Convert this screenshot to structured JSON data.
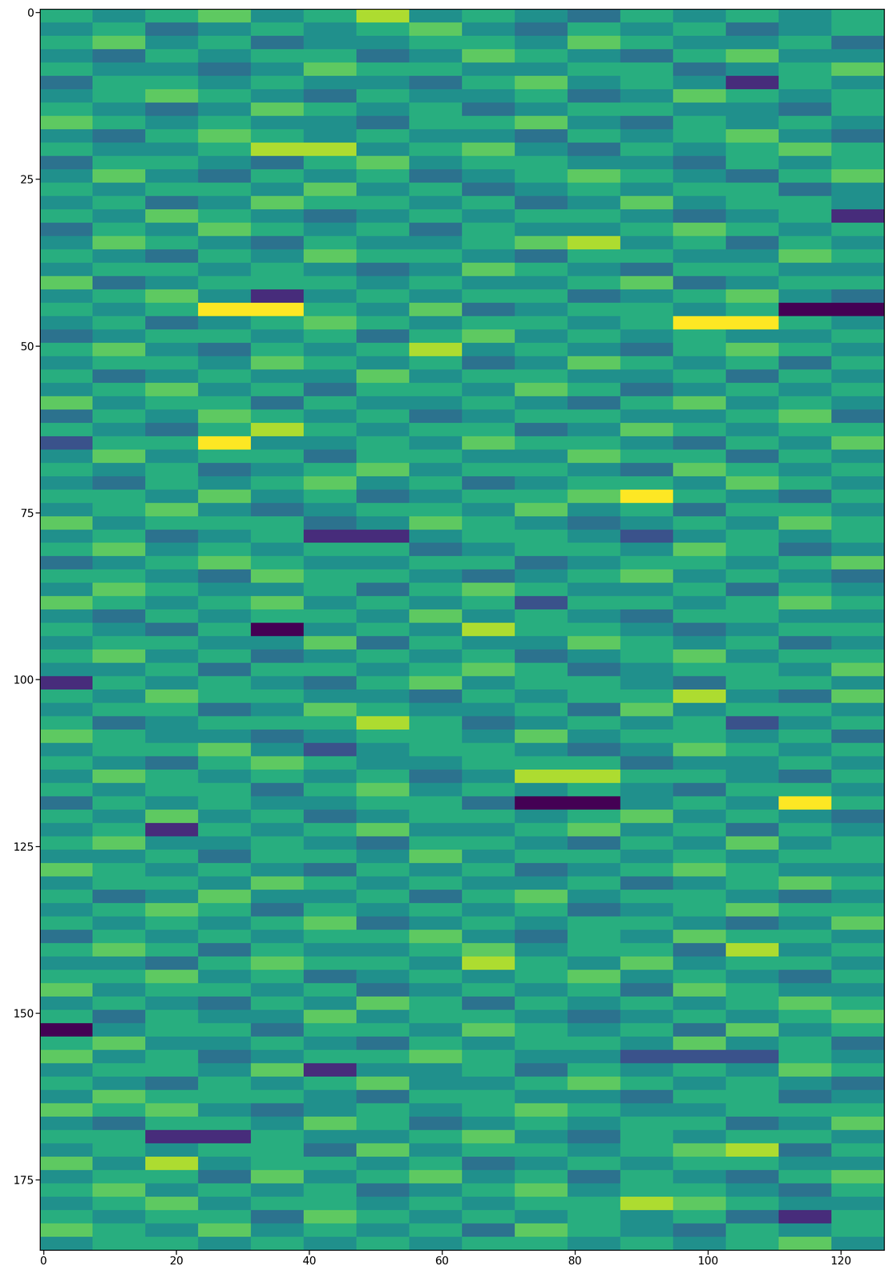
{
  "chart_data": {
    "type": "heatmap",
    "xlim": [
      -0.5,
      126.5
    ],
    "ylim": [
      185.5,
      -0.5
    ],
    "xticks": [
      0,
      20,
      40,
      60,
      80,
      100,
      120
    ],
    "yticks": [
      0,
      25,
      50,
      75,
      100,
      125,
      150,
      175
    ],
    "cells": [
      [
        1,
        0,
        1,
        2,
        0,
        1,
        3,
        0,
        1,
        0,
        -1,
        1,
        0,
        1,
        0,
        1
      ],
      [
        0,
        1,
        -1,
        0,
        1,
        0,
        1,
        2,
        0,
        -1,
        1,
        0,
        1,
        -1,
        0,
        1
      ],
      [
        1,
        2,
        0,
        1,
        -1,
        0,
        0,
        1,
        1,
        0,
        2,
        1,
        0,
        0,
        1,
        -1
      ],
      [
        0,
        -1,
        1,
        0,
        1,
        1,
        -1,
        0,
        2,
        1,
        0,
        -1,
        1,
        2,
        0,
        0
      ],
      [
        1,
        0,
        0,
        -1,
        0,
        2,
        1,
        1,
        0,
        0,
        1,
        1,
        -1,
        0,
        1,
        2
      ],
      [
        -1,
        1,
        1,
        0,
        1,
        0,
        0,
        -1,
        1,
        2,
        0,
        1,
        0,
        -3,
        1,
        0
      ],
      [
        0,
        1,
        2,
        1,
        0,
        -1,
        1,
        0,
        0,
        1,
        -1,
        0,
        2,
        1,
        0,
        1
      ],
      [
        1,
        0,
        -1,
        0,
        2,
        1,
        0,
        1,
        -1,
        0,
        1,
        1,
        0,
        0,
        -1,
        1
      ],
      [
        2,
        1,
        0,
        1,
        0,
        0,
        -1,
        1,
        1,
        2,
        0,
        -1,
        1,
        0,
        1,
        0
      ],
      [
        0,
        -1,
        1,
        2,
        1,
        0,
        1,
        0,
        0,
        -1,
        1,
        0,
        1,
        2,
        0,
        -1
      ],
      [
        1,
        0,
        0,
        1,
        3,
        3,
        0,
        1,
        2,
        0,
        -1,
        1,
        0,
        1,
        2,
        1
      ],
      [
        -1,
        1,
        1,
        0,
        -1,
        1,
        2,
        0,
        1,
        1,
        0,
        0,
        -1,
        1,
        0,
        1
      ],
      [
        0,
        2,
        0,
        -1,
        1,
        0,
        1,
        -1,
        0,
        1,
        2,
        1,
        0,
        -1,
        1,
        2
      ],
      [
        1,
        0,
        1,
        1,
        0,
        2,
        0,
        1,
        -1,
        0,
        1,
        0,
        1,
        1,
        -1,
        0
      ],
      [
        0,
        1,
        -1,
        0,
        2,
        1,
        1,
        0,
        1,
        -1,
        0,
        2,
        0,
        1,
        1,
        0
      ],
      [
        1,
        0,
        2,
        1,
        0,
        -1,
        0,
        1,
        0,
        1,
        1,
        0,
        -1,
        0,
        1,
        -3
      ],
      [
        -1,
        1,
        0,
        2,
        1,
        0,
        1,
        -1,
        1,
        0,
        0,
        1,
        2,
        1,
        0,
        1
      ],
      [
        0,
        2,
        1,
        0,
        -1,
        1,
        0,
        0,
        1,
        2,
        3,
        0,
        1,
        -1,
        1,
        0
      ],
      [
        1,
        0,
        -1,
        1,
        0,
        2,
        1,
        1,
        0,
        -1,
        1,
        1,
        0,
        0,
        2,
        1
      ],
      [
        0,
        1,
        1,
        0,
        1,
        0,
        -1,
        0,
        2,
        1,
        0,
        -1,
        1,
        1,
        0,
        0
      ],
      [
        2,
        -1,
        0,
        1,
        1,
        1,
        0,
        1,
        0,
        0,
        1,
        2,
        -1,
        0,
        1,
        1
      ],
      [
        0,
        1,
        2,
        0,
        -3,
        0,
        1,
        0,
        1,
        1,
        -1,
        0,
        1,
        2,
        0,
        -1
      ],
      [
        1,
        0,
        1,
        4,
        4,
        1,
        0,
        2,
        -1,
        0,
        1,
        1,
        0,
        1,
        -4,
        -4
      ],
      [
        0,
        1,
        -1,
        0,
        1,
        2,
        1,
        0,
        1,
        1,
        0,
        1,
        4,
        4,
        1,
        0
      ],
      [
        -1,
        0,
        1,
        1,
        0,
        1,
        -1,
        1,
        2,
        0,
        1,
        0,
        1,
        0,
        0,
        1
      ],
      [
        1,
        2,
        0,
        -1,
        1,
        0,
        1,
        3,
        0,
        1,
        0,
        -1,
        1,
        2,
        1,
        0
      ],
      [
        0,
        1,
        1,
        0,
        2,
        1,
        0,
        1,
        -1,
        0,
        2,
        1,
        0,
        1,
        -1,
        1
      ],
      [
        1,
        -1,
        0,
        1,
        0,
        0,
        2,
        0,
        1,
        1,
        0,
        0,
        1,
        -1,
        1,
        0
      ],
      [
        0,
        1,
        2,
        0,
        1,
        -1,
        1,
        1,
        0,
        2,
        1,
        -1,
        0,
        1,
        0,
        1
      ],
      [
        2,
        0,
        1,
        1,
        -1,
        1,
        0,
        0,
        1,
        0,
        -1,
        1,
        2,
        0,
        1,
        0
      ],
      [
        -1,
        1,
        0,
        2,
        1,
        0,
        1,
        -1,
        0,
        1,
        1,
        0,
        0,
        1,
        2,
        -1
      ],
      [
        1,
        0,
        -1,
        1,
        3,
        1,
        0,
        1,
        1,
        -1,
        0,
        2,
        1,
        0,
        1,
        1
      ],
      [
        -2,
        1,
        1,
        4,
        0,
        0,
        1,
        0,
        2,
        1,
        1,
        0,
        -1,
        1,
        0,
        2
      ],
      [
        0,
        2,
        0,
        1,
        1,
        -1,
        1,
        1,
        0,
        0,
        2,
        1,
        1,
        -1,
        1,
        0
      ],
      [
        1,
        0,
        1,
        -1,
        0,
        1,
        2,
        0,
        1,
        1,
        0,
        -1,
        2,
        1,
        0,
        1
      ],
      [
        0,
        -1,
        1,
        0,
        1,
        2,
        0,
        1,
        -1,
        0,
        1,
        1,
        0,
        2,
        1,
        0
      ],
      [
        1,
        1,
        0,
        2,
        0,
        1,
        -1,
        0,
        1,
        1,
        2,
        4,
        1,
        0,
        -1,
        1
      ],
      [
        0,
        1,
        2,
        0,
        -1,
        0,
        1,
        1,
        0,
        2,
        0,
        1,
        -1,
        1,
        1,
        0
      ],
      [
        2,
        0,
        1,
        1,
        1,
        -1,
        0,
        2,
        1,
        0,
        -1,
        0,
        1,
        0,
        2,
        1
      ],
      [
        0,
        1,
        -1,
        0,
        1,
        -3,
        -3,
        0,
        1,
        1,
        0,
        -2,
        0,
        1,
        0,
        1
      ],
      [
        1,
        2,
        0,
        1,
        0,
        1,
        1,
        -1,
        0,
        1,
        1,
        0,
        2,
        1,
        -1,
        0
      ],
      [
        -1,
        0,
        1,
        2,
        1,
        0,
        0,
        1,
        1,
        -1,
        0,
        1,
        1,
        0,
        1,
        2
      ],
      [
        1,
        1,
        0,
        -1,
        2,
        1,
        1,
        0,
        -1,
        0,
        1,
        2,
        0,
        1,
        0,
        -1
      ],
      [
        0,
        2,
        1,
        0,
        0,
        1,
        -1,
        1,
        2,
        1,
        0,
        0,
        1,
        -1,
        1,
        0
      ],
      [
        2,
        1,
        0,
        1,
        2,
        0,
        1,
        0,
        1,
        -2,
        1,
        1,
        0,
        1,
        2,
        1
      ],
      [
        0,
        -1,
        1,
        0,
        1,
        1,
        0,
        2,
        0,
        1,
        0,
        -1,
        1,
        1,
        0,
        0
      ],
      [
        1,
        0,
        -1,
        1,
        -4,
        0,
        1,
        0,
        3,
        1,
        1,
        0,
        -1,
        0,
        1,
        1
      ],
      [
        0,
        1,
        1,
        0,
        0,
        2,
        -1,
        1,
        0,
        0,
        2,
        1,
        0,
        1,
        -1,
        0
      ],
      [
        1,
        2,
        0,
        1,
        -1,
        0,
        1,
        0,
        1,
        -1,
        0,
        1,
        2,
        0,
        1,
        1
      ],
      [
        0,
        0,
        1,
        -1,
        1,
        1,
        0,
        1,
        2,
        1,
        -1,
        0,
        1,
        1,
        0,
        2
      ],
      [
        -3,
        1,
        0,
        1,
        0,
        -1,
        1,
        2,
        0,
        1,
        1,
        0,
        -1,
        1,
        1,
        0
      ],
      [
        1,
        0,
        2,
        1,
        1,
        0,
        0,
        -1,
        1,
        0,
        1,
        1,
        3,
        0,
        -1,
        2
      ],
      [
        0,
        1,
        1,
        -1,
        0,
        2,
        1,
        0,
        0,
        1,
        -1,
        2,
        0,
        1,
        1,
        0
      ],
      [
        1,
        -1,
        0,
        1,
        1,
        1,
        3,
        1,
        -1,
        0,
        1,
        0,
        1,
        -2,
        0,
        1
      ],
      [
        2,
        1,
        0,
        0,
        -1,
        0,
        1,
        1,
        0,
        2,
        0,
        1,
        1,
        0,
        1,
        -1
      ],
      [
        0,
        1,
        1,
        2,
        0,
        -2,
        0,
        1,
        1,
        0,
        -1,
        0,
        2,
        1,
        0,
        1
      ],
      [
        1,
        0,
        -1,
        1,
        2,
        1,
        0,
        0,
        1,
        1,
        1,
        -1,
        0,
        0,
        1,
        0
      ],
      [
        0,
        2,
        1,
        0,
        1,
        0,
        1,
        -1,
        0,
        3,
        3,
        1,
        1,
        0,
        -1,
        1
      ],
      [
        1,
        0,
        1,
        1,
        -1,
        1,
        2,
        0,
        1,
        0,
        1,
        0,
        -1,
        1,
        1,
        0
      ],
      [
        -1,
        1,
        0,
        1,
        0,
        0,
        1,
        1,
        -1,
        -4,
        -4,
        0,
        1,
        0,
        4,
        1
      ],
      [
        1,
        0,
        2,
        0,
        1,
        -1,
        0,
        1,
        1,
        0,
        1,
        2,
        0,
        1,
        0,
        -1
      ],
      [
        0,
        1,
        -3,
        1,
        0,
        1,
        2,
        0,
        0,
        1,
        2,
        0,
        1,
        -1,
        1,
        0
      ],
      [
        1,
        2,
        0,
        0,
        1,
        0,
        -1,
        1,
        1,
        0,
        -1,
        1,
        0,
        2,
        0,
        1
      ],
      [
        0,
        0,
        1,
        -1,
        1,
        1,
        0,
        2,
        0,
        1,
        1,
        0,
        1,
        0,
        1,
        1
      ],
      [
        2,
        1,
        0,
        1,
        0,
        -1,
        1,
        0,
        1,
        -1,
        0,
        1,
        2,
        1,
        0,
        0
      ],
      [
        0,
        1,
        1,
        0,
        2,
        1,
        0,
        1,
        0,
        0,
        1,
        -1,
        0,
        1,
        2,
        1
      ],
      [
        1,
        -1,
        0,
        2,
        0,
        0,
        1,
        -1,
        1,
        2,
        0,
        1,
        1,
        0,
        -1,
        0
      ],
      [
        0,
        1,
        2,
        1,
        -1,
        1,
        0,
        1,
        0,
        1,
        -1,
        0,
        1,
        2,
        1,
        1
      ],
      [
        1,
        0,
        1,
        0,
        1,
        2,
        -1,
        0,
        1,
        0,
        1,
        1,
        0,
        -1,
        0,
        2
      ],
      [
        -1,
        1,
        0,
        1,
        0,
        1,
        1,
        2,
        0,
        -1,
        1,
        0,
        2,
        1,
        1,
        0
      ],
      [
        1,
        2,
        1,
        -1,
        1,
        0,
        0,
        1,
        2,
        0,
        1,
        1,
        -1,
        3,
        0,
        1
      ],
      [
        0,
        0,
        -1,
        1,
        2,
        1,
        1,
        0,
        3,
        1,
        0,
        2,
        0,
        1,
        1,
        0
      ],
      [
        1,
        1,
        2,
        0,
        1,
        -1,
        0,
        1,
        0,
        1,
        2,
        0,
        1,
        0,
        -1,
        1
      ],
      [
        2,
        0,
        1,
        1,
        0,
        1,
        -1,
        0,
        1,
        0,
        1,
        -1,
        2,
        1,
        0,
        0
      ],
      [
        0,
        1,
        0,
        -1,
        1,
        0,
        2,
        1,
        -1,
        1,
        0,
        1,
        0,
        1,
        2,
        1
      ],
      [
        1,
        -1,
        1,
        0,
        0,
        2,
        0,
        1,
        1,
        0,
        -1,
        0,
        1,
        0,
        1,
        2
      ],
      [
        -4,
        0,
        1,
        1,
        -1,
        1,
        1,
        0,
        2,
        1,
        0,
        1,
        -1,
        2,
        0,
        1
      ],
      [
        1,
        2,
        0,
        0,
        1,
        0,
        -1,
        1,
        0,
        1,
        1,
        0,
        2,
        0,
        1,
        -1
      ],
      [
        2,
        0,
        1,
        -1,
        0,
        1,
        1,
        2,
        1,
        0,
        0,
        -2,
        -2,
        -2,
        1,
        0
      ],
      [
        0,
        1,
        1,
        0,
        2,
        -3,
        0,
        0,
        1,
        -1,
        1,
        0,
        1,
        0,
        2,
        1
      ],
      [
        1,
        0,
        -1,
        1,
        0,
        1,
        2,
        0,
        0,
        1,
        2,
        1,
        0,
        1,
        0,
        -1
      ],
      [
        0,
        2,
        1,
        1,
        1,
        0,
        -1,
        1,
        1,
        0,
        0,
        -1,
        1,
        1,
        -1,
        0
      ],
      [
        2,
        1,
        2,
        0,
        -1,
        0,
        1,
        0,
        1,
        2,
        1,
        0,
        0,
        1,
        1,
        1
      ],
      [
        0,
        -1,
        1,
        1,
        0,
        2,
        1,
        -1,
        0,
        1,
        0,
        1,
        1,
        -1,
        0,
        2
      ],
      [
        1,
        1,
        -3,
        -3,
        1,
        0,
        0,
        1,
        2,
        0,
        -1,
        1,
        0,
        1,
        1,
        0
      ],
      [
        0,
        1,
        0,
        1,
        1,
        -1,
        2,
        0,
        1,
        1,
        0,
        1,
        2,
        3,
        -1,
        1
      ],
      [
        2,
        0,
        3,
        0,
        1,
        1,
        0,
        1,
        -1,
        0,
        1,
        0,
        1,
        1,
        0,
        0
      ],
      [
        0,
        1,
        1,
        -1,
        2,
        0,
        1,
        2,
        0,
        1,
        -1,
        1,
        0,
        -1,
        1,
        2
      ],
      [
        1,
        2,
        0,
        1,
        0,
        1,
        -1,
        0,
        1,
        2,
        0,
        1,
        1,
        0,
        -1,
        1
      ],
      [
        0,
        1,
        2,
        0,
        1,
        1,
        0,
        1,
        0,
        1,
        1,
        3,
        2,
        1,
        0,
        0
      ],
      [
        1,
        0,
        1,
        1,
        -1,
        2,
        1,
        0,
        1,
        0,
        1,
        0,
        1,
        -1,
        -3,
        1
      ],
      [
        2,
        1,
        0,
        2,
        0,
        1,
        0,
        1,
        -1,
        2,
        1,
        0,
        -1,
        1,
        0,
        1
      ],
      [
        0,
        1,
        1,
        0,
        1,
        0,
        1,
        0,
        1,
        1,
        0,
        1,
        0,
        1,
        2,
        0
      ]
    ]
  }
}
